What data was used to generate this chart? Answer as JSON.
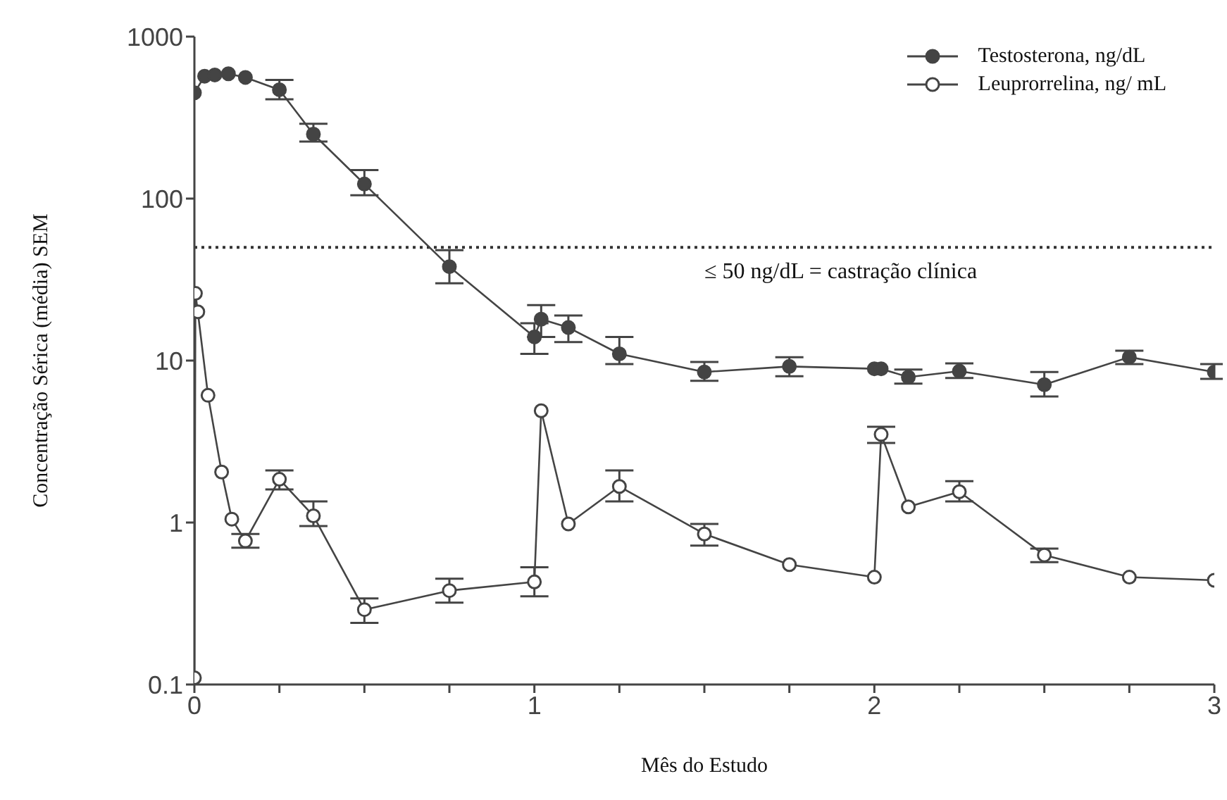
{
  "chart_data": {
    "type": "line",
    "xlabel": "Mês do Estudo",
    "ylabel": "Concentração Sérica (média) SEM",
    "xlim": [
      0,
      3
    ],
    "xticks": [
      0,
      {
        "value": 0.25,
        "label": null
      },
      {
        "value": 0.5,
        "label": null
      },
      {
        "value": 0.75,
        "label": null
      },
      1,
      {
        "value": 1.25,
        "label": null
      },
      {
        "value": 1.5,
        "label": null
      },
      {
        "value": 1.75,
        "label": null
      },
      2,
      {
        "value": 2.25,
        "label": null
      },
      {
        "value": 2.5,
        "label": null
      },
      {
        "value": 2.75,
        "label": null
      },
      3
    ],
    "ylim": [
      0.1,
      1000
    ],
    "yticks": [
      0.1,
      1,
      10,
      100,
      1000
    ],
    "log": "y",
    "grid": false,
    "legend": "top right",
    "marker": "circle",
    "line_style": "solid",
    "ref_lines": [
      {
        "axis": "y",
        "value": 50,
        "label": "≤ 50 ng/dL = castração clínica",
        "line_style": "dotted",
        "color": "#333333"
      }
    ],
    "series": [
      {
        "name": "Testosterona, ng/dL",
        "color": "#444444",
        "x": [
          0,
          0.03,
          0.06,
          0.1,
          0.15,
          0.25,
          0.35,
          0.5,
          0.75,
          1.0,
          1.02,
          1.1,
          1.25,
          1.5,
          1.75,
          2.0,
          2.02,
          2.1,
          2.25,
          2.5,
          2.75,
          3.0
        ],
        "values": [
          450,
          570,
          580,
          590,
          560,
          470,
          250,
          123,
          38,
          14,
          18,
          16,
          11,
          8.5,
          9.2,
          8.9,
          8.9,
          7.9,
          8.6,
          7.1,
          10.5,
          8.5
        ],
        "errors": [
          null,
          null,
          null,
          null,
          null,
          [
            410,
            540
          ],
          [
            225,
            290
          ],
          [
            105,
            150
          ],
          [
            30,
            48
          ],
          [
            11,
            17
          ],
          [
            14,
            22
          ],
          [
            13,
            19
          ],
          [
            9.5,
            14
          ],
          [
            7.5,
            9.8
          ],
          [
            8,
            10.5
          ],
          null,
          null,
          [
            7.2,
            8.8
          ],
          [
            7.8,
            9.6
          ],
          [
            6,
            8.5
          ],
          [
            9.5,
            11.5
          ],
          [
            7.7,
            9.5
          ]
        ]
      },
      {
        "name": "Leuprorrelina, ng/ mL",
        "color": "#444444",
        "x": [
          0,
          0.003,
          0.01,
          0.04,
          0.08,
          0.11,
          0.15,
          0.25,
          0.35,
          0.5,
          0.75,
          1.0,
          1.02,
          1.1,
          1.25,
          1.5,
          1.75,
          2.0,
          2.02,
          2.1,
          2.25,
          2.5,
          2.75,
          3.0
        ],
        "values": [
          0.11,
          26,
          20,
          6.1,
          2.05,
          1.05,
          0.77,
          1.85,
          1.1,
          0.29,
          0.38,
          0.43,
          4.9,
          0.98,
          1.67,
          0.85,
          0.55,
          0.46,
          3.5,
          1.25,
          1.55,
          0.63,
          0.46,
          0.44
        ],
        "errors": [
          null,
          null,
          null,
          null,
          null,
          null,
          [
            0.7,
            0.85
          ],
          [
            1.6,
            2.1
          ],
          [
            0.95,
            1.35
          ],
          [
            0.24,
            0.34
          ],
          [
            0.32,
            0.45
          ],
          [
            0.35,
            0.53
          ],
          null,
          null,
          [
            1.35,
            2.1
          ],
          [
            0.72,
            0.98
          ],
          null,
          null,
          [
            3.1,
            3.9
          ],
          null,
          [
            1.35,
            1.8
          ],
          [
            0.57,
            0.69
          ],
          null,
          null
        ]
      }
    ]
  }
}
